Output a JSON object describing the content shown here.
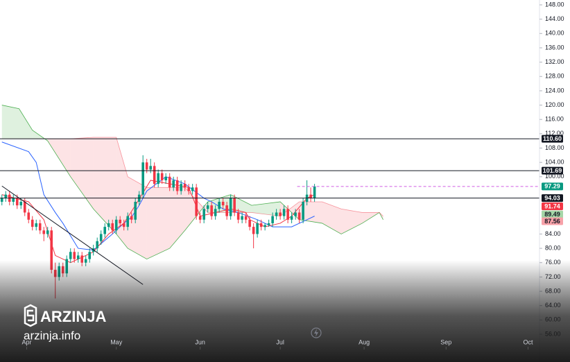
{
  "chart_data": {
    "type": "candlestick",
    "x": [
      0,
      1,
      2,
      3,
      4,
      5,
      6,
      7,
      8,
      9,
      10,
      11,
      12,
      13,
      14,
      15,
      16,
      17,
      18,
      19,
      20,
      21,
      22,
      23,
      24,
      25,
      26,
      27,
      28,
      29,
      30,
      31,
      32,
      33,
      34,
      35,
      36,
      37,
      38,
      39,
      40,
      41,
      42,
      43,
      44,
      45,
      46,
      47,
      48,
      49,
      50,
      51,
      52,
      53,
      54,
      55,
      56,
      57,
      58,
      59,
      60,
      61,
      62,
      63,
      64,
      65,
      66,
      67,
      68,
      69,
      70,
      71,
      72,
      73,
      74,
      75,
      76,
      77,
      78,
      79,
      80,
      81,
      82
    ],
    "open": [
      93,
      94,
      95,
      93,
      94,
      92,
      93,
      90,
      88,
      86,
      87,
      85,
      84,
      85,
      74,
      72,
      75,
      73,
      77,
      79,
      77,
      78,
      76,
      77,
      79,
      80,
      82,
      84,
      86,
      87,
      85,
      88,
      87,
      86,
      89,
      88,
      93,
      95,
      104,
      102,
      103,
      98,
      101,
      99,
      100,
      97,
      99,
      96,
      98,
      97,
      96,
      97,
      89,
      88,
      91,
      92,
      89,
      91,
      93,
      92,
      89,
      94,
      90,
      88,
      89,
      88,
      86,
      84,
      87,
      86,
      86.5,
      87,
      89,
      90,
      89,
      91,
      88,
      89,
      90,
      88,
      93,
      95,
      94
    ],
    "high": [
      95,
      96,
      96,
      95,
      95,
      94,
      94,
      91,
      89,
      88,
      88,
      86,
      86,
      86,
      76,
      76,
      76,
      78,
      80,
      80,
      79,
      79,
      78,
      80,
      81,
      83,
      85,
      87,
      88,
      88,
      89,
      89,
      88,
      90,
      90,
      94,
      96,
      106,
      105,
      105,
      104,
      102,
      102,
      101,
      101,
      100,
      100,
      99,
      99,
      98,
      98,
      98,
      90,
      92,
      93,
      93,
      92,
      94,
      94,
      93,
      95,
      95,
      91,
      90,
      90,
      89,
      87,
      88,
      88,
      87,
      88,
      90,
      91,
      91,
      92,
      92,
      90,
      91,
      91,
      94,
      99,
      97,
      98
    ],
    "low": [
      92,
      93,
      92,
      92,
      91,
      91,
      89,
      87,
      85,
      85,
      84,
      82,
      83,
      73,
      66,
      71,
      72,
      72,
      76,
      76,
      76,
      75,
      75,
      76,
      78,
      79,
      81,
      83,
      85,
      84,
      84,
      86,
      85,
      85,
      87,
      87,
      92,
      94,
      101,
      101,
      97,
      97,
      98,
      98,
      96,
      96,
      95,
      95,
      96,
      95,
      95,
      88,
      87,
      87,
      90,
      88,
      88,
      90,
      91,
      88,
      88,
      89,
      87,
      87,
      87,
      85,
      80,
      83,
      85,
      85,
      86,
      86,
      88,
      88,
      88,
      87,
      87,
      88,
      87,
      87,
      92,
      93,
      93
    ],
    "close": [
      94,
      95,
      93,
      94,
      92,
      93,
      90,
      88,
      86,
      87,
      85,
      84,
      85,
      74,
      72,
      75,
      73,
      77,
      79,
      77,
      78,
      76,
      77,
      79,
      80,
      82,
      84,
      86,
      87,
      85,
      88,
      87,
      86,
      89,
      88,
      93,
      95,
      104,
      102,
      103,
      98,
      101,
      99,
      100,
      97,
      99,
      96,
      98,
      97,
      96,
      97,
      89,
      88,
      91,
      92,
      89,
      91,
      93,
      92,
      89,
      94,
      90,
      88,
      89,
      88,
      86,
      84,
      87,
      86,
      86.5,
      87,
      89,
      90,
      89,
      91,
      88,
      89,
      90,
      88,
      93,
      95,
      94,
      97.29
    ],
    "up_color": "#089981",
    "down_color": "#f23645",
    "conversion_line": {
      "color": "#2962ff",
      "x": [
        0,
        7,
        9,
        11,
        14,
        16,
        20,
        24,
        29,
        32,
        34,
        36,
        38,
        43,
        48,
        53,
        55,
        58,
        62,
        67,
        71,
        76,
        80,
        82
      ],
      "values": [
        109.7,
        107,
        104,
        95,
        90,
        87,
        80,
        79.5,
        84,
        87,
        88.7,
        92,
        96,
        100,
        98,
        94,
        93,
        91,
        90,
        88,
        86,
        86,
        88,
        89
      ]
    },
    "base_line": {
      "color": "#f23645",
      "x": [
        0,
        7,
        11,
        14,
        18,
        24,
        28,
        32,
        35,
        39,
        44,
        49,
        52,
        56,
        60,
        64,
        65,
        69,
        73,
        76,
        80,
        82
      ],
      "values": [
        95,
        93,
        88,
        78,
        76,
        79,
        84,
        87,
        92,
        99,
        98,
        97,
        89,
        90,
        91,
        90,
        88,
        86,
        87,
        89,
        94,
        95
      ]
    },
    "cloud": {
      "up_color": "#4caf50",
      "down_color": "#f23645",
      "x": [
        0,
        4.5,
        8,
        12,
        18,
        24,
        30,
        33,
        38,
        44,
        48,
        54,
        60,
        65.5,
        73,
        78,
        84,
        89,
        94.5,
        99,
        100
      ],
      "span_a": [
        120,
        119,
        113,
        110,
        100,
        91,
        84,
        80,
        77,
        80,
        85,
        93,
        95,
        92,
        93,
        88,
        87,
        84,
        87,
        90,
        88
      ],
      "span_b": [
        110.6,
        110.6,
        110.6,
        110.6,
        110.6,
        111,
        111,
        100,
        97,
        97,
        97,
        90,
        90,
        90,
        89,
        93,
        93,
        91,
        90,
        90,
        89
      ]
    },
    "trendline": {
      "color": "#131722",
      "x": [
        0,
        37
      ],
      "values": [
        97.4,
        69.9
      ]
    },
    "levels": [
      {
        "value": 110.6,
        "label": "110.60",
        "color": "#131722",
        "text_color": "#ffffff",
        "line": "solid"
      },
      {
        "value": 101.69,
        "label": "101.69",
        "color": "#131722",
        "text_color": "#ffffff",
        "line": "solid"
      },
      {
        "value": 97.29,
        "label": "97.29",
        "color": "#089981",
        "text_color": "#ffffff",
        "line": "dashed",
        "line_color": "#d05ce3"
      },
      {
        "value": 94.03,
        "label": "94.03",
        "color": "#131722",
        "text_color": "#ffffff",
        "line": "solid"
      },
      {
        "value": 91.74,
        "label": "91.74",
        "color": "#f23645",
        "text_color": "#ffffff"
      },
      {
        "value": 89.49,
        "label": "89.49",
        "color": "#a5d6a7",
        "text_color": "#131722"
      },
      {
        "value": 87.56,
        "label": "87.56",
        "color": "#f7a1a8",
        "text_color": "#131722"
      }
    ],
    "xlim": [
      -0.5,
      141
    ],
    "ylim": [
      56,
      148
    ],
    "xticks": [
      {
        "value": 6.5,
        "label": "Apr"
      },
      {
        "value": 30,
        "label": "May"
      },
      {
        "value": 52,
        "label": "Jun"
      },
      {
        "value": 73,
        "label": "Jul"
      },
      {
        "value": 95,
        "label": "Aug"
      },
      {
        "value": 116.5,
        "label": "Sep"
      },
      {
        "value": 138,
        "label": "Oct"
      }
    ],
    "yticks": [
      {
        "value": 148,
        "label": "148.00"
      },
      {
        "value": 144,
        "label": "144.00"
      },
      {
        "value": 140,
        "label": "140.00"
      },
      {
        "value": 136,
        "label": "136.00"
      },
      {
        "value": 132,
        "label": "132.00"
      },
      {
        "value": 128,
        "label": "128.00"
      },
      {
        "value": 124,
        "label": "124.00"
      },
      {
        "value": 120,
        "label": "120.00"
      },
      {
        "value": 116,
        "label": "116.00"
      },
      {
        "value": 112,
        "label": "112.00"
      },
      {
        "value": 108,
        "label": "108.00"
      },
      {
        "value": 104,
        "label": "104.00"
      },
      {
        "value": 100,
        "label": "100.00"
      },
      {
        "value": 84,
        "label": "84.00"
      },
      {
        "value": 80,
        "label": "80.00"
      },
      {
        "value": 76,
        "label": "76.00"
      },
      {
        "value": 72,
        "label": "72.00"
      },
      {
        "value": 68,
        "label": "68.00"
      },
      {
        "value": 64,
        "label": "64.00"
      },
      {
        "value": 60,
        "label": "60.00"
      },
      {
        "value": 56,
        "label": "56.00"
      }
    ]
  },
  "brand": {
    "name": "ARZINJA",
    "site": "arzinja.info"
  }
}
